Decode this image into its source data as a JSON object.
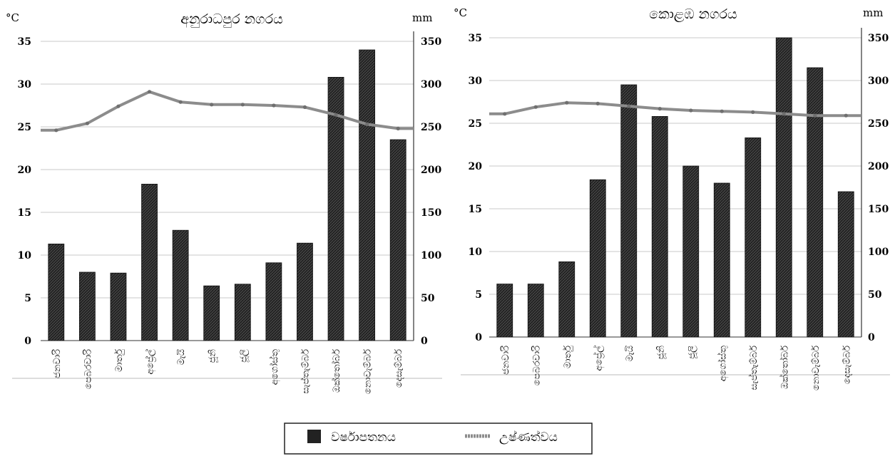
{
  "legend": {
    "rainfall_label": "වර්ෂාපතනය",
    "temperature_label": "උෂ්ණත්වය"
  },
  "colors": {
    "bar": "#2b2b2b",
    "line": "#8c8c8c",
    "grid": "#c8c8c8"
  },
  "chart_data": [
    {
      "type": "bar",
      "title": "අනුරාධපුර නගරය",
      "y_left_unit": "°C",
      "y_right_unit": "mm",
      "ylim_left": [
        0,
        35
      ],
      "ylim_right": [
        0,
        350
      ],
      "yticks_left": [
        0,
        5,
        10,
        15,
        20,
        25,
        30,
        35
      ],
      "yticks_right": [
        0,
        50,
        100,
        150,
        200,
        250,
        300,
        350
      ],
      "categories": [
        "ජනවාරි",
        "පෙබරවාරි",
        "මාර්තු",
        "අප්‍රේල්",
        "මැයි",
        "ජූනි",
        "ජූලි",
        "අගෝස්තු",
        "සැප්තැම්බර්",
        "ඔක්තෝබර්",
        "නොවැම්බර්",
        "දෙසැම්බර්"
      ],
      "grid": true,
      "series": [
        {
          "name": "වර්ෂාපතනය",
          "axis": "right",
          "type": "bar",
          "values": [
            113,
            80,
            79,
            183,
            129,
            64,
            66,
            91,
            114,
            308,
            340,
            235
          ]
        },
        {
          "name": "උෂ්ණත්වය",
          "axis": "left",
          "type": "line",
          "values": [
            24.6,
            25.4,
            27.4,
            29.1,
            27.9,
            27.6,
            27.6,
            27.5,
            27.3,
            26.4,
            25.3,
            24.8
          ]
        }
      ]
    },
    {
      "type": "bar",
      "title": "කොළඹ නගරය",
      "y_left_unit": "°C",
      "y_right_unit": "mm",
      "ylim_left": [
        0,
        35
      ],
      "ylim_right": [
        0,
        350
      ],
      "yticks_left": [
        0,
        5,
        10,
        15,
        20,
        25,
        30,
        35
      ],
      "yticks_right": [
        0,
        50,
        100,
        150,
        200,
        250,
        300,
        350
      ],
      "categories": [
        "ජනවාරි",
        "පෙබරවාරි",
        "මාර්තු",
        "අප්‍රේල්",
        "මැයි",
        "ජූනි",
        "ජූලි",
        "අගෝස්තු",
        "සැප්තැම්බර්",
        "ඔක්තෝබර්",
        "නොවැම්බර්",
        "දෙසැම්බර්"
      ],
      "grid": true,
      "series": [
        {
          "name": "වර්ෂාපතනය",
          "axis": "right",
          "type": "bar",
          "values": [
            62,
            62,
            88,
            184,
            295,
            258,
            200,
            180,
            233,
            350,
            315,
            170
          ]
        },
        {
          "name": "උෂ්ණත්වය",
          "axis": "left",
          "type": "line",
          "values": [
            26.1,
            26.9,
            27.4,
            27.3,
            27.0,
            26.7,
            26.5,
            26.4,
            26.3,
            26.1,
            25.9,
            25.9
          ]
        }
      ]
    }
  ]
}
